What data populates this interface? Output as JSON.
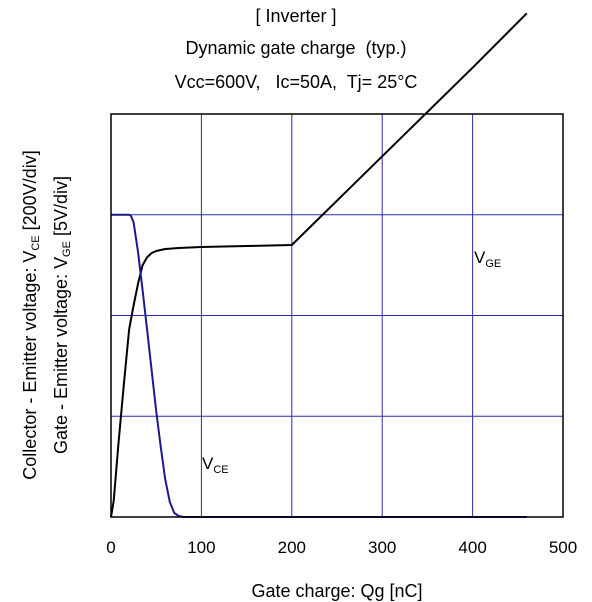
{
  "chart_data": {
    "type": "line",
    "title": "[ Inverter ]",
    "subtitle": "Dynamic gate charge  (typ.)",
    "conditions": "Vcc=600V,   Ic=50A,  Tj= 25°C",
    "xlabel": "Gate charge: Qg [nC]",
    "ylabel_outer": {
      "main": "Collector - Emitter voltage: V",
      "sub": "CE",
      "unit": " [200V/div]"
    },
    "ylabel_inner": {
      "main": "Gate - Emitter voltage: V",
      "sub": "GE",
      "unit": " [5V/div]"
    },
    "xlim": [
      0,
      500
    ],
    "x_ticks": [
      "0",
      "100",
      "200",
      "300",
      "400",
      "500"
    ],
    "y_divisions": 4,
    "grid": true,
    "colors": {
      "vge": "#000000",
      "vce": "#1a1a8c",
      "grid": "#2a2ab0",
      "frame": "#000000"
    },
    "series": [
      {
        "name": "V_GE",
        "label": {
          "main": "V",
          "sub": "GE"
        },
        "y_unit": "V",
        "y_per_div": 5,
        "points": [
          [
            0,
            0
          ],
          [
            3,
            0.8
          ],
          [
            8,
            3.5
          ],
          [
            14,
            6.5
          ],
          [
            20,
            9.3
          ],
          [
            25,
            10.5
          ],
          [
            30,
            11.6
          ],
          [
            35,
            12.5
          ],
          [
            40,
            12.9
          ],
          [
            45,
            13.1
          ],
          [
            50,
            13.2
          ],
          [
            60,
            13.3
          ],
          [
            75,
            13.35
          ],
          [
            100,
            13.4
          ],
          [
            150,
            13.45
          ],
          [
            200,
            13.5
          ],
          [
            300,
            17.9
          ],
          [
            400,
            22.3
          ],
          [
            460,
            25
          ]
        ]
      },
      {
        "name": "V_CE",
        "label": {
          "main": "V",
          "sub": "CE"
        },
        "y_unit": "V",
        "y_per_div": 200,
        "points": [
          [
            0,
            600
          ],
          [
            20,
            600
          ],
          [
            22,
            598
          ],
          [
            25,
            585
          ],
          [
            30,
            525
          ],
          [
            35,
            450
          ],
          [
            40,
            370
          ],
          [
            45,
            290
          ],
          [
            50,
            210
          ],
          [
            55,
            140
          ],
          [
            60,
            75
          ],
          [
            65,
            30
          ],
          [
            70,
            8
          ],
          [
            75,
            2
          ],
          [
            80,
            0
          ],
          [
            460,
            0
          ]
        ]
      }
    ]
  }
}
